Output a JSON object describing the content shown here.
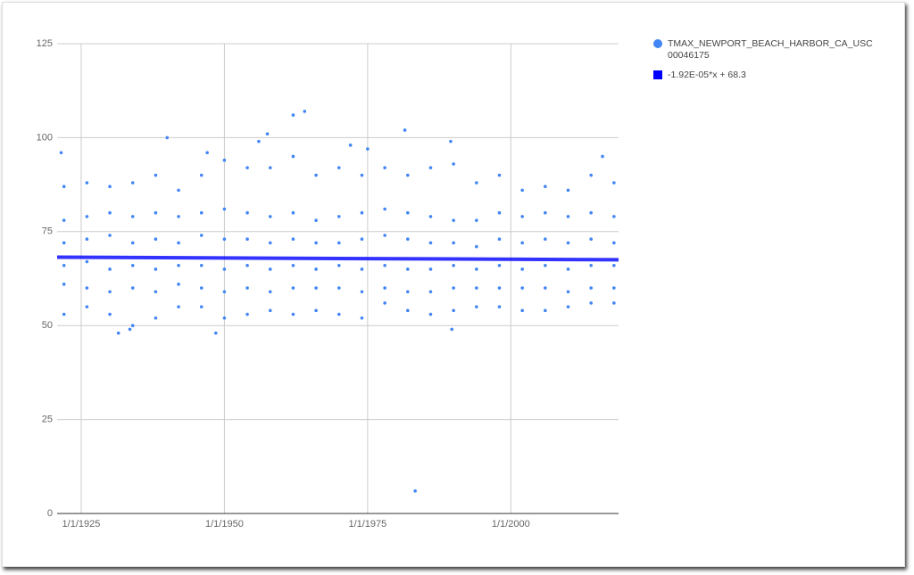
{
  "chart_data": {
    "type": "scatter",
    "grid": true,
    "xlim": [
      1920.8,
      2018.8
    ],
    "xticks": [
      {
        "value": 1925,
        "label": "1/1/1925"
      },
      {
        "value": 1950,
        "label": "1/1/1950"
      },
      {
        "value": 1975,
        "label": "1/1/1975"
      },
      {
        "value": 2000,
        "label": "1/1/2000"
      }
    ],
    "ylim": [
      0,
      125
    ],
    "yticks": [
      0,
      25,
      50,
      75,
      100,
      125
    ],
    "legend": "right",
    "series": [
      {
        "name": "TMAX_NEWPORT_BEACH_HARBOR_CA_USC00046175",
        "color": "#4285f4",
        "x": [
          1922,
          1922,
          1922,
          1922,
          1922,
          1922,
          1926,
          1926,
          1926,
          1926,
          1926,
          1926,
          1930,
          1930,
          1930,
          1930,
          1930,
          1930,
          1934,
          1934,
          1934,
          1934,
          1934,
          1934,
          1938,
          1938,
          1938,
          1938,
          1938,
          1938,
          1942,
          1942,
          1942,
          1942,
          1942,
          1942,
          1946,
          1946,
          1946,
          1946,
          1946,
          1946,
          1950,
          1950,
          1950,
          1950,
          1950,
          1950,
          1954,
          1954,
          1954,
          1954,
          1954,
          1954,
          1958,
          1958,
          1958,
          1958,
          1958,
          1958,
          1962,
          1962,
          1962,
          1962,
          1962,
          1962,
          1966,
          1966,
          1966,
          1966,
          1966,
          1966,
          1970,
          1970,
          1970,
          1970,
          1970,
          1970,
          1974,
          1974,
          1974,
          1974,
          1974,
          1974,
          1978,
          1978,
          1978,
          1978,
          1978,
          1978,
          1982,
          1982,
          1982,
          1982,
          1982,
          1982,
          1986,
          1986,
          1986,
          1986,
          1986,
          1986,
          1990,
          1990,
          1990,
          1990,
          1990,
          1990,
          1994,
          1994,
          1994,
          1994,
          1994,
          1994,
          1998,
          1998,
          1998,
          1998,
          1998,
          1998,
          2002,
          2002,
          2002,
          2002,
          2002,
          2002,
          2006,
          2006,
          2006,
          2006,
          2006,
          2006,
          2010,
          2010,
          2010,
          2010,
          2010,
          2010,
          2014,
          2014,
          2014,
          2014,
          2014,
          2014,
          2018,
          2018,
          2018,
          2018,
          2018,
          2018,
          1921.5,
          1931.5,
          1933.5,
          1940,
          1947,
          1948.5,
          1956,
          1957.5,
          1962,
          1964,
          1972,
          1975,
          1981.5,
          1983.3,
          1989.5,
          1989.7,
          2016
        ],
        "values": [
          87,
          78,
          72,
          66,
          61,
          53,
          88,
          79,
          73,
          67,
          60,
          55,
          87,
          80,
          74,
          65,
          59,
          53,
          88,
          79,
          72,
          66,
          60,
          50,
          90,
          80,
          73,
          65,
          59,
          52,
          86,
          79,
          72,
          66,
          61,
          55,
          90,
          80,
          74,
          66,
          60,
          55,
          94,
          81,
          73,
          65,
          59,
          52,
          92,
          80,
          73,
          66,
          60,
          53,
          92,
          79,
          72,
          65,
          59,
          54,
          95,
          80,
          73,
          66,
          60,
          53,
          90,
          78,
          72,
          65,
          60,
          54,
          92,
          79,
          72,
          66,
          60,
          53,
          90,
          80,
          73,
          65,
          59,
          52,
          92,
          81,
          74,
          66,
          60,
          56,
          90,
          80,
          73,
          65,
          59,
          54,
          92,
          79,
          72,
          65,
          59,
          53,
          93,
          78,
          72,
          66,
          60,
          54,
          88,
          78,
          71,
          65,
          60,
          55,
          90,
          80,
          73,
          66,
          60,
          55,
          86,
          79,
          72,
          65,
          60,
          54,
          87,
          80,
          73,
          66,
          60,
          54,
          86,
          79,
          72,
          65,
          59,
          55,
          90,
          80,
          73,
          66,
          60,
          56,
          88,
          79,
          72,
          66,
          60,
          56,
          96,
          48,
          49,
          100,
          96,
          48,
          99,
          101,
          106,
          107,
          98,
          97,
          102,
          6,
          99,
          49,
          95
        ]
      },
      {
        "name": "-1.92E-05*x + 68.3",
        "color": "#0000ff",
        "type": "line",
        "x": [
          1920.8,
          2018.8
        ],
        "values": [
          68.2,
          67.5
        ]
      }
    ]
  }
}
